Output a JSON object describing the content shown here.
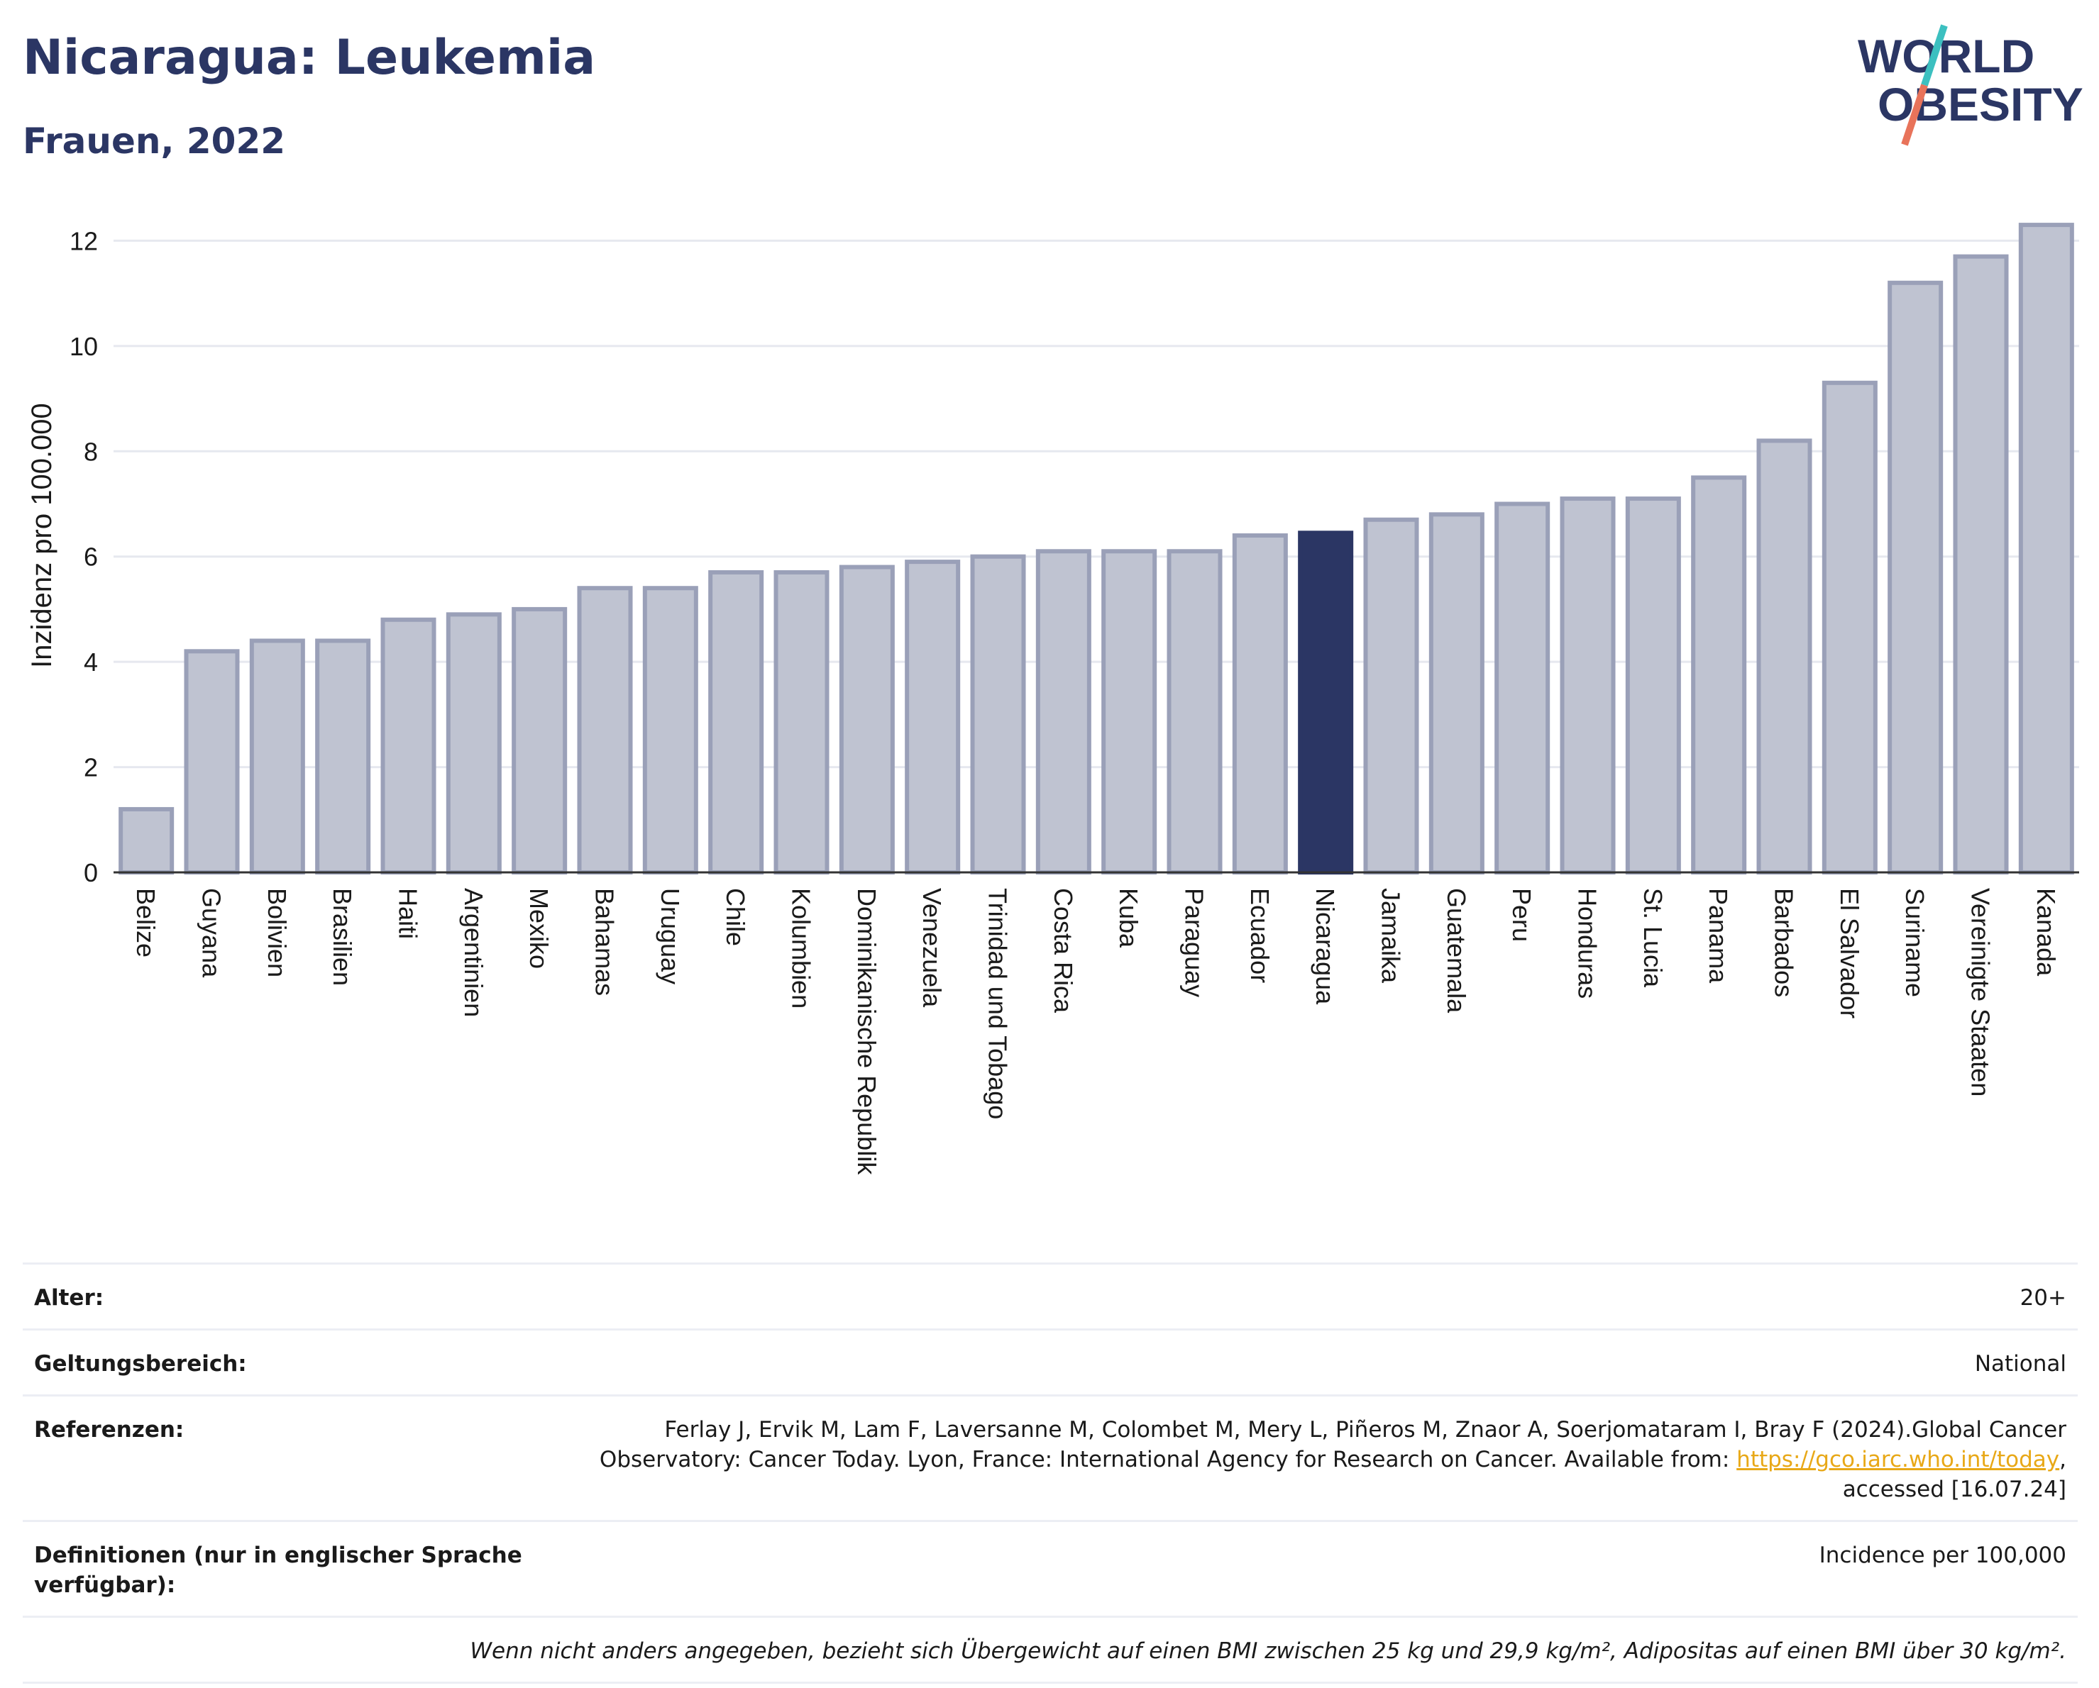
{
  "header": {
    "title": "Nicaragua: Leukemia",
    "subtitle": "Frauen, 2022"
  },
  "logo": {
    "line1": "WORLD",
    "line2": "OBESITY",
    "accent_colors": [
      "#3cc0c0",
      "#e8735a"
    ],
    "text_color": "#2b3664"
  },
  "chart_data": {
    "type": "bar",
    "ylabel": "Inzidenz pro 100.000",
    "ylim": [
      0,
      12.8
    ],
    "yticks": [
      0,
      2,
      4,
      6,
      8,
      10,
      12
    ],
    "grid": true,
    "highlight": "Nicaragua",
    "colors": {
      "bar": "#bfc3d1",
      "bar_edge": "#9aa0b8",
      "highlight": "#2b3664"
    },
    "categories": [
      "Belize",
      "Guyana",
      "Bolivien",
      "Brasilien",
      "Haiti",
      "Argentinien",
      "Mexiko",
      "Bahamas",
      "Uruguay",
      "Chile",
      "Kolumbien",
      "Dominikanische Republik",
      "Venezuela",
      "Trinidad und Tobago",
      "Costa Rica",
      "Kuba",
      "Paraguay",
      "Ecuador",
      "Nicaragua",
      "Jamaika",
      "Guatemala",
      "Peru",
      "Honduras",
      "St. Lucia",
      "Panama",
      "Barbados",
      "El Salvador",
      "Suriname",
      "Vereinigte Staaten",
      "Kanada"
    ],
    "values": [
      1.2,
      4.2,
      4.4,
      4.4,
      4.8,
      4.9,
      5.0,
      5.4,
      5.4,
      5.7,
      5.7,
      5.8,
      5.9,
      6.0,
      6.1,
      6.1,
      6.1,
      6.4,
      6.45,
      6.7,
      6.8,
      7.0,
      7.1,
      7.1,
      7.5,
      8.2,
      9.3,
      11.2,
      11.7,
      12.3
    ]
  },
  "meta": {
    "age_label": "Alter:",
    "age_value": "20+",
    "scope_label": "Geltungsbereich:",
    "scope_value": "National",
    "refs_label": "Referenzen:",
    "refs_text_1": "Ferlay J, Ervik M, Lam F, Laversanne M, Colombet M, Mery L, Piñeros M, Znaor A, Soerjomataram I, Bray F (2024).Global Cancer Observatory: Cancer Today. Lyon, France: International Agency for Research on Cancer. Available from: ",
    "refs_link": "https://gco.iarc.who.int/today",
    "refs_text_2": ", accessed [16.07.24]",
    "defs_label": "Definitionen (nur in englischer Sprache verfügbar):",
    "defs_value": "Incidence per 100,000",
    "note": "Wenn nicht anders angegeben, bezieht sich Übergewicht auf einen BMI zwischen 25 kg und 29,9 kg/m², Adipositas auf einen BMI über 30 kg/m²."
  }
}
